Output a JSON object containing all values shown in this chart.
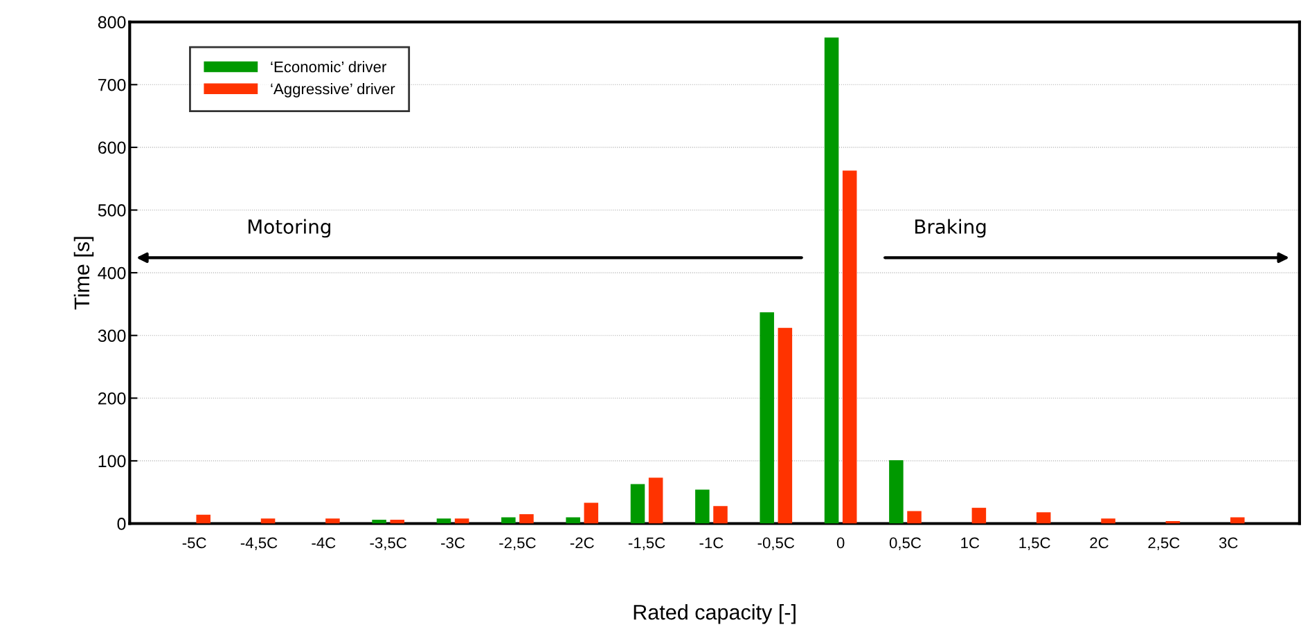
{
  "chart_data": {
    "type": "bar",
    "xlabel": "Rated capacity [-]",
    "ylabel": "Time [s]",
    "categories": [
      "-5C",
      "-4,5C",
      "-4C",
      "-3,5C",
      "-3C",
      "-2,5C",
      "-2C",
      "-1,5C",
      "-1C",
      "-0,5C",
      "0",
      "0,5C",
      "1C",
      "1,5C",
      "2C",
      "2,5C",
      "3C"
    ],
    "series": [
      {
        "name": "‘Economic’ driver",
        "color": "#009900",
        "values": [
          null,
          null,
          null,
          6,
          8,
          10,
          10,
          63,
          54,
          337,
          775,
          101,
          null,
          null,
          null,
          null,
          null
        ]
      },
      {
        "name": "‘Aggressive’ driver",
        "color": "#ff3300",
        "values": [
          14,
          8,
          8,
          6,
          8,
          15,
          33,
          73,
          28,
          312,
          563,
          20,
          25,
          18,
          8,
          4,
          10
        ]
      }
    ],
    "ylim": [
      0,
      800
    ],
    "yticks": [
      0,
      100,
      200,
      300,
      400,
      500,
      600,
      700,
      800
    ],
    "grid": "y",
    "legend": "top left",
    "annotations": [
      "Motoring",
      "Braking"
    ]
  }
}
